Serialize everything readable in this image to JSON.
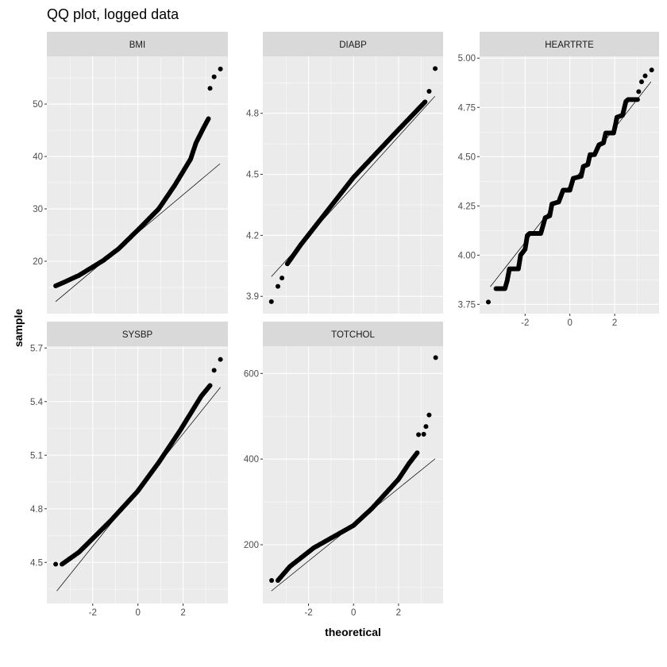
{
  "chart_data": {
    "type": "scatter",
    "title": "QQ plot, logged data",
    "xlabel": "theoretical",
    "ylabel": "sample",
    "grid": true,
    "colors": {
      "panel_bg": "#ebebeb",
      "strip_bg": "#d9d9d9",
      "grid": "#ffffff",
      "points": "#000000",
      "line": "#000000",
      "tick_text": "#4d4d4d"
    },
    "panels": [
      {
        "name": "BMI",
        "xlim": [
          -4.03,
          3.98
        ],
        "ylim": [
          10.0,
          59.1
        ],
        "x_breaks": [
          -2,
          0,
          2
        ],
        "y_breaks": [
          20,
          30,
          40,
          50
        ],
        "show_x_labels": false,
        "points": [
          [
            -3.64,
            15.3
          ],
          [
            -3.32,
            15.9
          ],
          [
            -2.61,
            17.3
          ],
          [
            -1.55,
            20.1
          ],
          [
            -0.85,
            22.4
          ],
          [
            0.1,
            26.4
          ],
          [
            0.92,
            30
          ],
          [
            1.63,
            34.5
          ],
          [
            2.33,
            39.5
          ],
          [
            2.57,
            42.6
          ],
          [
            2.92,
            45.6
          ],
          [
            3.12,
            47.2
          ]
        ],
        "outliers": [
          [
            3.19,
            53.0
          ],
          [
            3.37,
            55.2
          ],
          [
            3.65,
            56.7
          ]
        ],
        "line": [
          [
            -3.64,
            12.3
          ],
          [
            3.63,
            38.6
          ]
        ]
      },
      {
        "name": "DIABP",
        "xlim": [
          -4.03,
          3.98
        ],
        "ylim": [
          3.815,
          5.08
        ],
        "x_breaks": [
          -2,
          0,
          2
        ],
        "y_breaks": [
          3.9,
          4.2,
          4.5,
          4.8
        ],
        "show_x_labels": false,
        "points": [
          [
            -2.94,
            4.06
          ],
          [
            -2.35,
            4.153
          ],
          [
            0,
            4.485
          ],
          [
            1.89,
            4.707
          ],
          [
            3.18,
            4.856
          ]
        ],
        "outliers": [
          [
            -3.65,
            3.874
          ],
          [
            -3.36,
            3.949
          ],
          [
            -3.18,
            3.99
          ],
          [
            3.36,
            4.908
          ],
          [
            3.63,
            5.02
          ]
        ],
        "line": [
          [
            -3.65,
            3.997
          ],
          [
            3.62,
            4.884
          ]
        ]
      },
      {
        "name": "HEARTRTE",
        "xlim": [
          -4.03,
          3.98
        ],
        "ylim": [
          3.703,
          5.009
        ],
        "x_breaks": [
          -2,
          0,
          2
        ],
        "y_breaks": [
          3.75,
          4.0,
          4.25,
          4.5,
          4.75,
          5.0
        ],
        "y_labels": [
          "3.75",
          "4.00",
          "4.25",
          "4.50",
          "4.75",
          "5.00"
        ],
        "show_x_labels": true,
        "points": [
          [
            -3.3,
            3.83
          ],
          [
            -2.9,
            3.83
          ],
          [
            -2.8,
            3.87
          ],
          [
            -2.7,
            3.93
          ],
          [
            -2.3,
            3.93
          ],
          [
            -2.2,
            4.0
          ],
          [
            -2.0,
            4.03
          ],
          [
            -1.9,
            4.1
          ],
          [
            -1.8,
            4.11
          ],
          [
            -1.3,
            4.11
          ],
          [
            -1.1,
            4.19
          ],
          [
            -0.9,
            4.2
          ],
          [
            -0.8,
            4.26
          ],
          [
            -0.5,
            4.27
          ],
          [
            -0.3,
            4.33
          ],
          [
            0,
            4.33
          ],
          [
            0.15,
            4.39
          ],
          [
            0.5,
            4.4
          ],
          [
            0.6,
            4.45
          ],
          [
            0.8,
            4.46
          ],
          [
            0.9,
            4.51
          ],
          [
            1.1,
            4.51
          ],
          [
            1.3,
            4.56
          ],
          [
            1.5,
            4.57
          ],
          [
            1.6,
            4.62
          ],
          [
            1.95,
            4.62
          ],
          [
            2.05,
            4.67
          ],
          [
            2.1,
            4.7
          ],
          [
            2.35,
            4.71
          ],
          [
            2.5,
            4.78
          ],
          [
            2.6,
            4.79
          ],
          [
            3.02,
            4.79
          ]
        ],
        "outliers": [
          [
            -3.64,
            3.762
          ],
          [
            3.07,
            4.83
          ],
          [
            3.2,
            4.88
          ],
          [
            3.36,
            4.91
          ],
          [
            3.65,
            4.94
          ]
        ],
        "line": [
          [
            -3.55,
            3.84
          ],
          [
            3.62,
            4.88
          ]
        ]
      },
      {
        "name": "SYSBP",
        "xlim": [
          -4.03,
          3.98
        ],
        "ylim": [
          4.27,
          5.71
        ],
        "x_breaks": [
          -2,
          0,
          2
        ],
        "y_breaks": [
          4.5,
          4.8,
          5.1,
          5.4,
          5.7
        ],
        "show_x_labels": true,
        "points": [
          [
            -3.36,
            4.49
          ],
          [
            -2.61,
            4.557
          ],
          [
            -2.02,
            4.631
          ],
          [
            -1.2,
            4.734
          ],
          [
            -0.02,
            4.897
          ],
          [
            0.92,
            5.059
          ],
          [
            1.86,
            5.237
          ],
          [
            2.8,
            5.43
          ],
          [
            3.19,
            5.49
          ]
        ],
        "outliers": [
          [
            -3.64,
            4.49
          ],
          [
            3.37,
            5.575
          ],
          [
            3.65,
            5.636
          ]
        ],
        "line": [
          [
            -3.59,
            4.34
          ],
          [
            3.65,
            5.48
          ]
        ]
      },
      {
        "name": "TOTCHOL",
        "xlim": [
          -4.03,
          3.98
        ],
        "ylim": [
          62.8,
          663.6
        ],
        "x_breaks": [
          -2,
          0,
          2
        ],
        "y_breaks": [
          200,
          400,
          600
        ],
        "show_x_labels": true,
        "points": [
          [
            -3.36,
            116.6
          ],
          [
            -2.83,
            149
          ],
          [
            -1.77,
            192.6
          ],
          [
            0,
            245
          ],
          [
            0.83,
            285.3
          ],
          [
            2.0,
            353
          ],
          [
            2.47,
            390
          ],
          [
            2.83,
            414.7
          ]
        ],
        "outliers": [
          [
            -3.64,
            116.6
          ],
          [
            2.89,
            457
          ],
          [
            3.12,
            458
          ],
          [
            3.22,
            476
          ],
          [
            3.36,
            503
          ],
          [
            3.65,
            637
          ]
        ],
        "line": [
          [
            -3.65,
            92
          ],
          [
            3.63,
            400.7
          ]
        ]
      }
    ]
  }
}
